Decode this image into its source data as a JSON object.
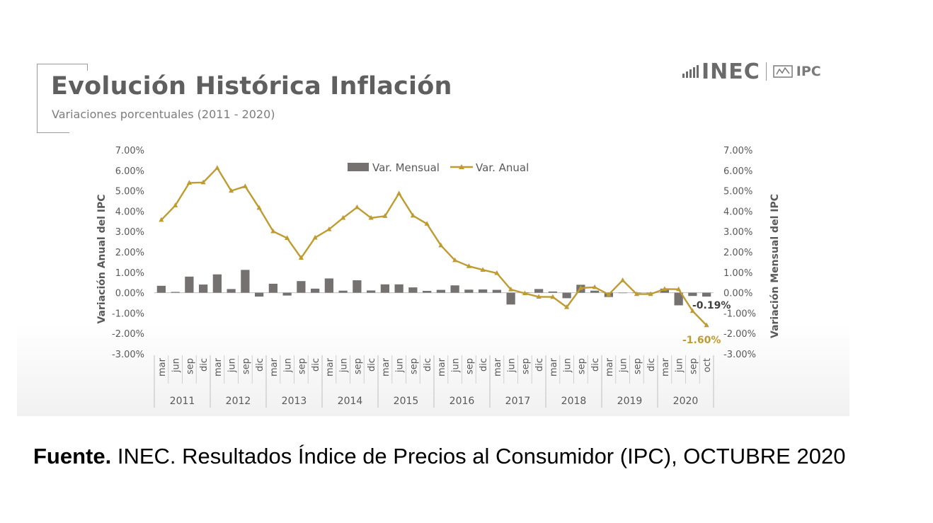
{
  "header": {
    "title": "Evolución Histórica Inflación",
    "subtitle": "Variaciones porcentuales (2011  -  2020)"
  },
  "logo": {
    "brand": "INEC",
    "product": "IPC",
    "brand_color": "#6b6b6b"
  },
  "colors": {
    "bar": "#767171",
    "line": "#BF9B30",
    "annual_label": "#BF9B30",
    "axis_text": "#595959"
  },
  "chart_data": {
    "type": "bar+line",
    "legend": {
      "monthly": "Var. Mensual",
      "annual": "Var. Anual",
      "position": "top-center"
    },
    "y_left_label": "Variación Anual del IPC",
    "y_right_label": "Variación Mensual del IPC",
    "ylim": [
      -3,
      7
    ],
    "y_ticks": [
      "7.00%",
      "6.00%",
      "5.00%",
      "4.00%",
      "3.00%",
      "2.00%",
      "1.00%",
      "0.00%",
      "-1.00%",
      "-2.00%",
      "-3.00%"
    ],
    "categories": [
      "mar",
      "jun",
      "sep",
      "dic",
      "mar",
      "jun",
      "sep",
      "dic",
      "mar",
      "jun",
      "sep",
      "dic",
      "mar",
      "jun",
      "sep",
      "dic",
      "mar",
      "jun",
      "sep",
      "dic",
      "mar",
      "jun",
      "sep",
      "dic",
      "mar",
      "jun",
      "sep",
      "dic",
      "mar",
      "jun",
      "sep",
      "dic",
      "mar",
      "jun",
      "sep",
      "dic",
      "mar",
      "jun",
      "sep",
      "oct"
    ],
    "years": [
      "2011",
      "2012",
      "2013",
      "2014",
      "2015",
      "2016",
      "2017",
      "2018",
      "2019",
      "2020"
    ],
    "series": [
      {
        "name": "Var. Mensual",
        "type": "bar",
        "values": [
          0.34,
          0.04,
          0.79,
          0.4,
          0.9,
          0.18,
          1.12,
          -0.19,
          0.44,
          -0.14,
          0.57,
          0.2,
          0.7,
          0.1,
          0.61,
          0.11,
          0.41,
          0.41,
          0.26,
          0.09,
          0.14,
          0.36,
          0.15,
          0.16,
          0.14,
          -0.58,
          0.01,
          0.18,
          0.06,
          -0.27,
          0.39,
          0.1,
          -0.21,
          0.0,
          -0.01,
          -0.01,
          0.2,
          -0.62,
          -0.16,
          -0.19
        ]
      },
      {
        "name": "Var. Anual",
        "type": "line",
        "values": [
          3.57,
          4.28,
          5.39,
          5.41,
          6.12,
          5.0,
          5.22,
          4.16,
          3.01,
          2.68,
          1.71,
          2.7,
          3.11,
          3.67,
          4.19,
          3.67,
          3.76,
          4.87,
          3.78,
          3.38,
          2.32,
          1.59,
          1.3,
          1.12,
          0.96,
          0.16,
          -0.03,
          -0.2,
          -0.21,
          -0.71,
          0.23,
          0.27,
          -0.09,
          0.61,
          -0.07,
          -0.07,
          0.18,
          0.17,
          -0.9,
          -1.6
        ]
      }
    ],
    "annotations": [
      {
        "text": "-0.19%",
        "series": "Var. Mensual",
        "index": 39
      },
      {
        "text": "-1.60%",
        "series": "Var. Anual",
        "index": 39
      }
    ]
  },
  "source": {
    "label": "Fuente.",
    "text": "INEC. Resultados Índice de Precios al Consumidor (IPC), OCTUBRE 2020"
  }
}
